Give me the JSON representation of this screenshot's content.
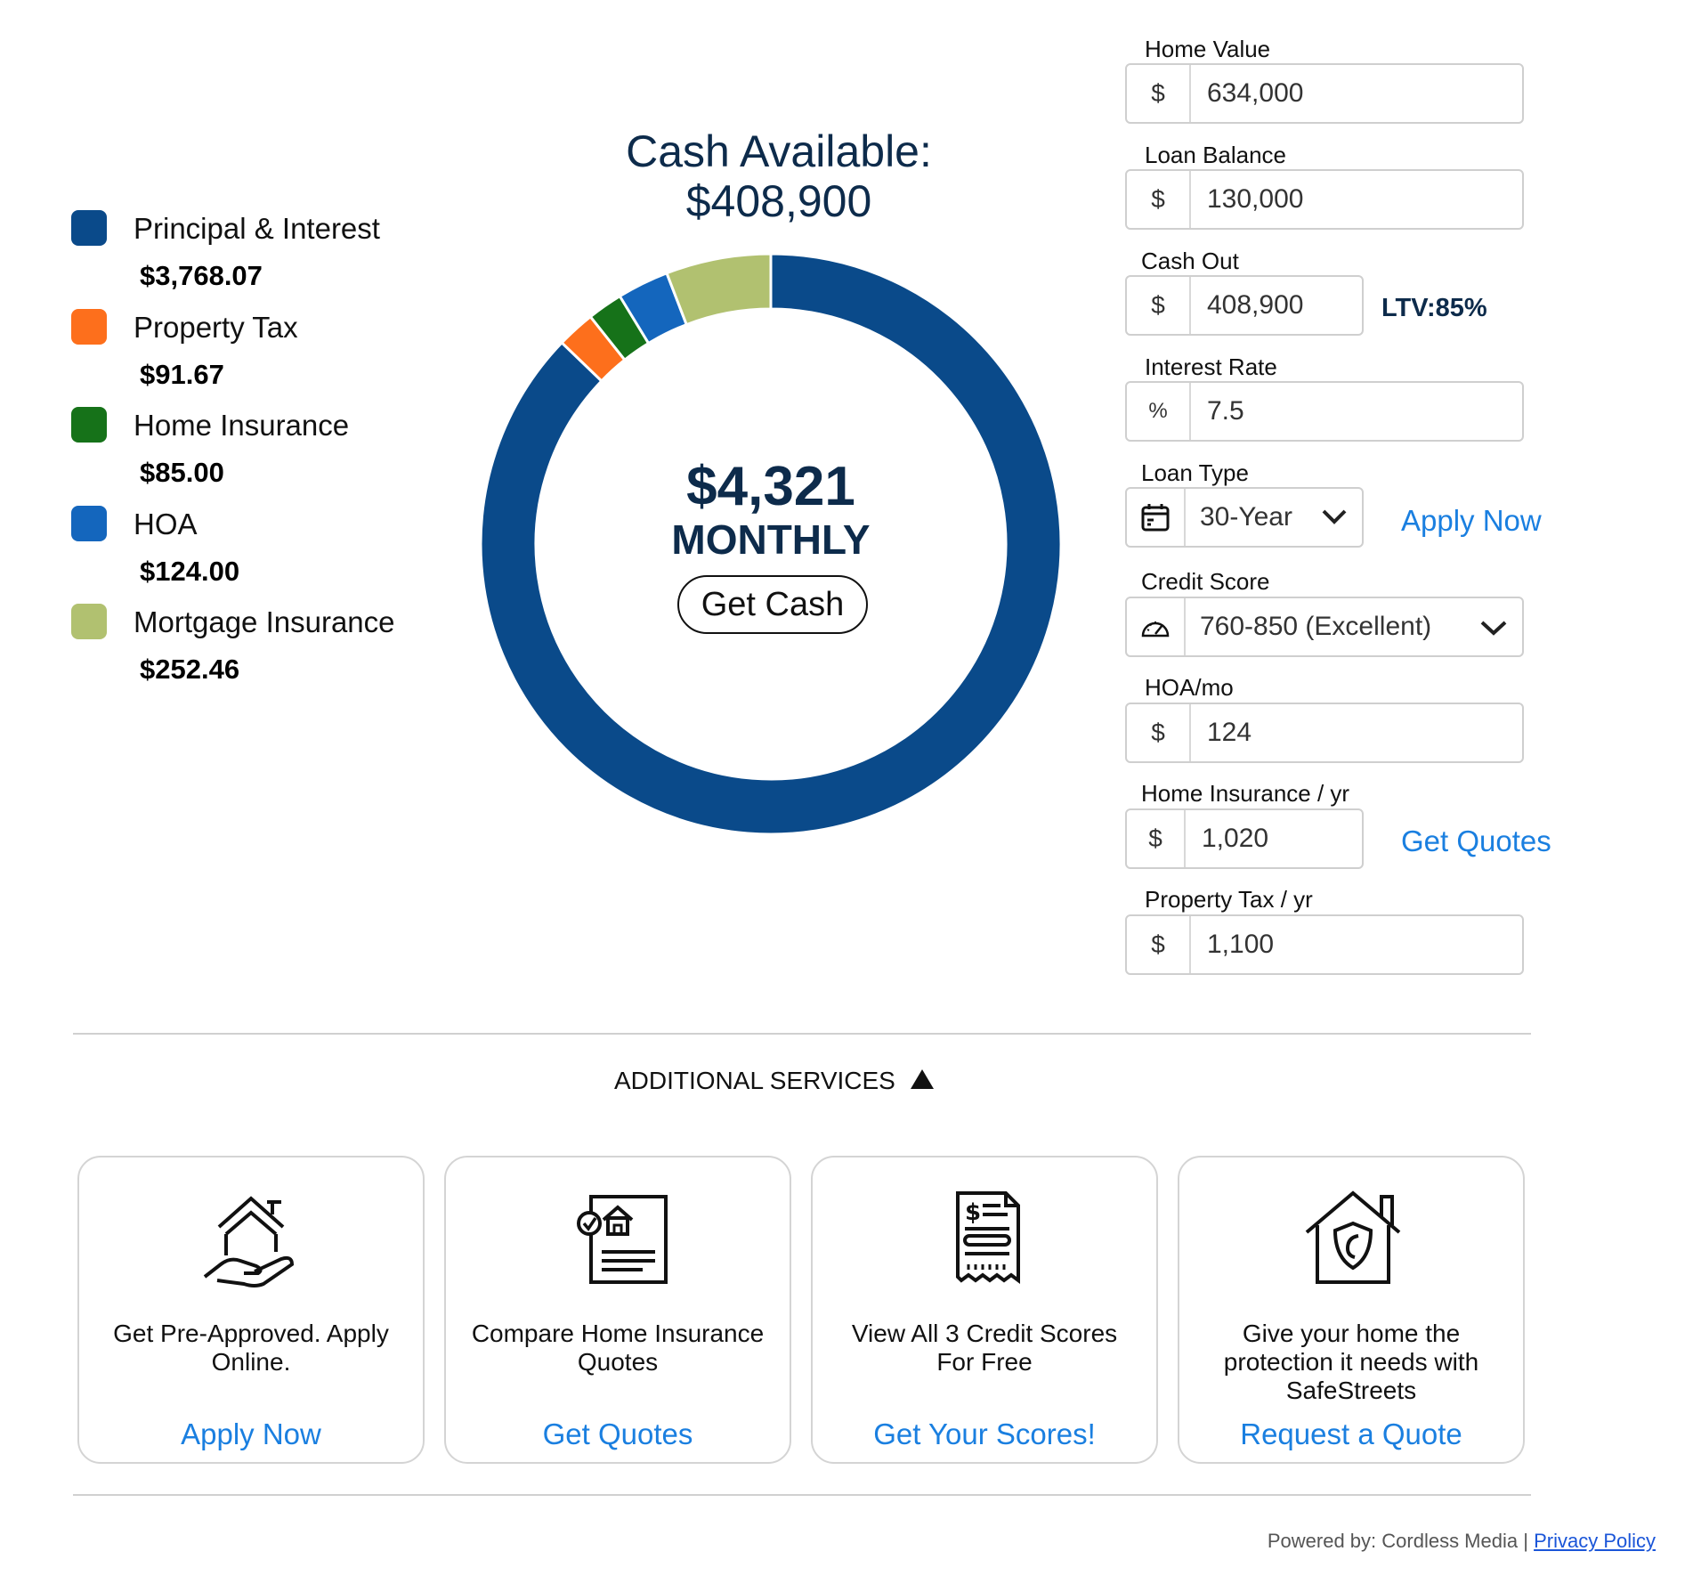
{
  "legend": [
    {
      "label": "Principal & Interest",
      "value": "$3,768.07",
      "color": "#0a4a8a"
    },
    {
      "label": "Property Tax",
      "value": "$91.67",
      "color": "#fd6f1c"
    },
    {
      "label": "Home Insurance",
      "value": "$85.00",
      "color": "#167219"
    },
    {
      "label": "HOA",
      "value": "$124.00",
      "color": "#1466bd"
    },
    {
      "label": "Mortgage Insurance",
      "value": "$252.46",
      "color": "#b1c170"
    }
  ],
  "headline": {
    "title": "Cash Available:",
    "amount": "$408,900"
  },
  "summary": {
    "monthly_amount": "$4,321",
    "monthly_label": "MONTHLY",
    "get_cash_label": "Get Cash"
  },
  "chart_data": {
    "type": "pie",
    "subtype": "donut",
    "categories": [
      "Principal & Interest",
      "Property Tax",
      "Home Insurance",
      "HOA",
      "Mortgage Insurance"
    ],
    "values": [
      3768.07,
      91.67,
      85.0,
      124.0,
      252.46
    ],
    "colors": [
      "#0a4a8a",
      "#fd6f1c",
      "#167219",
      "#1466bd",
      "#b1c170"
    ],
    "total_label": "$4,321"
  },
  "form": {
    "home_value": {
      "label": "Home Value",
      "prefix": "$",
      "value": "634,000"
    },
    "loan_balance": {
      "label": "Loan Balance",
      "prefix": "$",
      "value": "130,000"
    },
    "cash_out": {
      "label": "Cash Out",
      "prefix": "$",
      "value": "408,900",
      "ltv": "LTV:85%"
    },
    "interest_rate": {
      "label": "Interest Rate",
      "prefix": "%",
      "value": "7.5"
    },
    "loan_type": {
      "label": "Loan Type",
      "icon": "calendar-icon",
      "value": "30-Year",
      "link": "Apply Now"
    },
    "credit_score": {
      "label": "Credit Score",
      "icon": "gauge-icon",
      "value": "760-850 (Excellent)"
    },
    "hoa": {
      "label": "HOA/mo",
      "prefix": "$",
      "value": "124"
    },
    "home_insurance": {
      "label": "Home Insurance / yr",
      "prefix": "$",
      "value": "1,020",
      "link": "Get Quotes"
    },
    "property_tax": {
      "label": "Property Tax / yr",
      "prefix": "$",
      "value": "1,100"
    }
  },
  "services": {
    "title": "ADDITIONAL SERVICES",
    "cards": [
      {
        "icon": "house-in-hand-icon",
        "text": "Get Pre-Approved. Apply Online.",
        "link": "Apply Now"
      },
      {
        "icon": "insurance-document-icon",
        "text": "Compare Home Insurance Quotes",
        "link": "Get Quotes"
      },
      {
        "icon": "credit-report-icon",
        "text": "View All 3 Credit Scores For Free",
        "link": "Get Your Scores!"
      },
      {
        "icon": "home-shield-icon",
        "text": "Give your home the protection it needs with SafeStreets",
        "link": "Request a Quote"
      }
    ]
  },
  "footer": {
    "powered_by": "Powered by: Cordless Media",
    "separator": "|",
    "privacy_link": "Privacy Policy"
  }
}
